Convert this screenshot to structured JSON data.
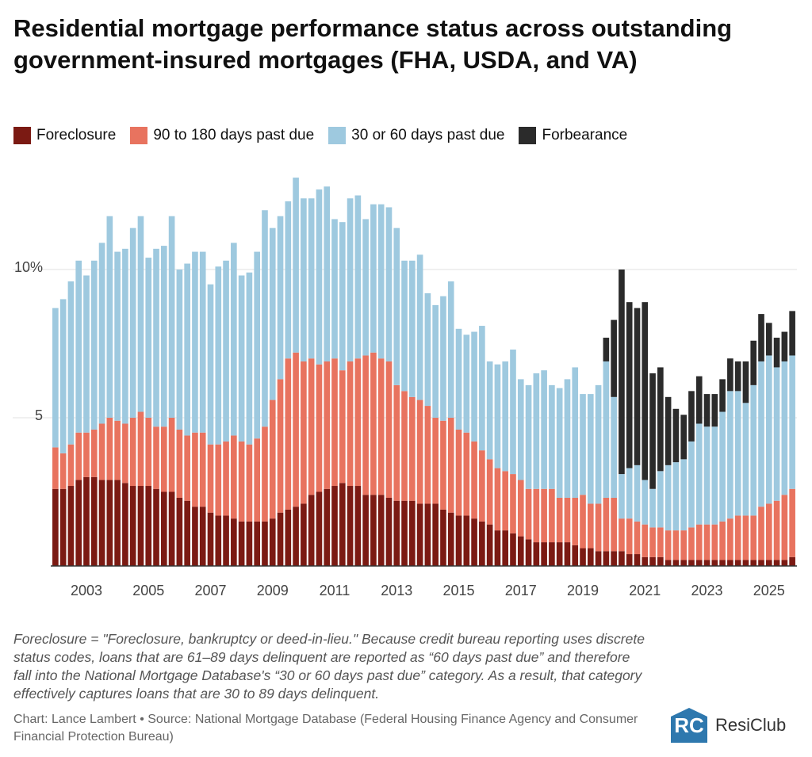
{
  "chart_data": {
    "type": "stacked_bar",
    "title": "Residential mortgage performance status across outstanding government-insured mortgages (FHA, USDA, and VA)",
    "note": "Foreclosure = \"Foreclosure, bankruptcy or deed-in-lieu.\" Because credit bureau reporting uses discrete status codes, loans that are 61–89 days delinquent are reported as “60 days past due” and therefore fall into the National Mortgage Database's “30 or 60 days past due” category. As a result, that category effectively captures loans that are 30 to 89 days delinquent.",
    "source": "Chart: Lance Lambert • Source: National Mortgage Database (Federal Housing Finance Agency and Consumer Financial Protection Bureau)",
    "brand": {
      "mark": "RC",
      "name": "ResiClub"
    },
    "x": [
      2002,
      2002.25,
      2002.5,
      2002.75,
      2003,
      2003.25,
      2003.5,
      2003.75,
      2004,
      2004.25,
      2004.5,
      2004.75,
      2005,
      2005.25,
      2005.5,
      2005.75,
      2006,
      2006.25,
      2006.5,
      2006.75,
      2007,
      2007.25,
      2007.5,
      2007.75,
      2008,
      2008.25,
      2008.5,
      2008.75,
      2009,
      2009.25,
      2009.5,
      2009.75,
      2010,
      2010.25,
      2010.5,
      2010.75,
      2011,
      2011.25,
      2011.5,
      2011.75,
      2012,
      2012.25,
      2012.5,
      2012.75,
      2013,
      2013.25,
      2013.5,
      2013.75,
      2014,
      2014.25,
      2014.5,
      2014.75,
      2015,
      2015.25,
      2015.5,
      2015.75,
      2016,
      2016.25,
      2016.5,
      2016.75,
      2017,
      2017.25,
      2017.5,
      2017.75,
      2018,
      2018.25,
      2018.5,
      2018.75,
      2019,
      2019.25,
      2019.5,
      2019.75,
      2020,
      2020.25,
      2020.5,
      2020.75,
      2021,
      2021.25,
      2021.5,
      2021.75,
      2022,
      2022.25,
      2022.5,
      2022.75,
      2023,
      2023.25,
      2023.5,
      2023.75,
      2024,
      2024.25,
      2024.5,
      2024.75,
      2025,
      2025.25,
      2025.5,
      2025.75
    ],
    "series": [
      {
        "name": "Foreclosure",
        "color": "#7b1a13",
        "values": [
          2.6,
          2.6,
          2.7,
          2.9,
          3.0,
          3.0,
          2.9,
          2.9,
          2.9,
          2.8,
          2.7,
          2.7,
          2.7,
          2.6,
          2.5,
          2.5,
          2.3,
          2.2,
          2.0,
          2.0,
          1.8,
          1.7,
          1.7,
          1.6,
          1.5,
          1.5,
          1.5,
          1.5,
          1.6,
          1.8,
          1.9,
          2.0,
          2.1,
          2.4,
          2.5,
          2.6,
          2.7,
          2.8,
          2.7,
          2.7,
          2.4,
          2.4,
          2.4,
          2.3,
          2.2,
          2.2,
          2.2,
          2.1,
          2.1,
          2.1,
          1.9,
          1.8,
          1.7,
          1.7,
          1.6,
          1.5,
          1.4,
          1.2,
          1.2,
          1.1,
          1.0,
          0.9,
          0.8,
          0.8,
          0.8,
          0.8,
          0.8,
          0.7,
          0.6,
          0.6,
          0.5,
          0.5,
          0.5,
          0.5,
          0.4,
          0.4,
          0.3,
          0.3,
          0.3,
          0.2,
          0.2,
          0.2,
          0.2,
          0.2,
          0.2,
          0.2,
          0.2,
          0.2,
          0.2,
          0.2,
          0.2,
          0.2,
          0.2,
          0.2,
          0.2,
          0.3
        ]
      },
      {
        "name": "90 to 180 days past due",
        "color": "#e8735f",
        "values": [
          1.4,
          1.2,
          1.4,
          1.6,
          1.5,
          1.6,
          1.9,
          2.1,
          2.0,
          2.0,
          2.3,
          2.5,
          2.3,
          2.1,
          2.2,
          2.5,
          2.3,
          2.2,
          2.5,
          2.5,
          2.3,
          2.4,
          2.5,
          2.8,
          2.7,
          2.6,
          2.8,
          3.2,
          4.0,
          4.5,
          5.1,
          5.2,
          4.8,
          4.6,
          4.3,
          4.3,
          4.3,
          3.8,
          4.2,
          4.3,
          4.7,
          4.8,
          4.6,
          4.6,
          3.9,
          3.7,
          3.5,
          3.5,
          3.3,
          2.9,
          3.0,
          3.2,
          2.9,
          2.8,
          2.6,
          2.4,
          2.2,
          2.1,
          2.0,
          2.0,
          1.9,
          1.7,
          1.8,
          1.8,
          1.8,
          1.5,
          1.5,
          1.6,
          1.8,
          1.5,
          1.6,
          1.8,
          1.8,
          1.1,
          1.2,
          1.1,
          1.1,
          1.0,
          1.0,
          1.0,
          1.0,
          1.0,
          1.1,
          1.2,
          1.2,
          1.2,
          1.3,
          1.4,
          1.5,
          1.5,
          1.5,
          1.8,
          1.9,
          2.0,
          2.2,
          2.3
        ]
      },
      {
        "name": "30 or 60 days past due",
        "color": "#9ec9df",
        "values": [
          4.7,
          5.2,
          5.5,
          5.8,
          5.3,
          5.7,
          6.1,
          6.8,
          5.7,
          5.9,
          6.4,
          6.6,
          5.4,
          6.0,
          6.1,
          6.8,
          5.4,
          5.8,
          6.1,
          6.1,
          5.4,
          6.0,
          6.1,
          6.5,
          5.6,
          5.8,
          6.3,
          7.3,
          5.8,
          5.5,
          5.3,
          5.9,
          5.5,
          5.4,
          5.9,
          5.9,
          4.7,
          5.0,
          5.5,
          5.5,
          4.6,
          5.0,
          5.2,
          5.2,
          5.3,
          4.4,
          4.6,
          4.9,
          3.8,
          3.8,
          4.2,
          4.6,
          3.4,
          3.3,
          3.7,
          4.2,
          3.3,
          3.5,
          3.7,
          4.2,
          3.4,
          3.5,
          3.9,
          4.0,
          3.5,
          3.7,
          4.0,
          4.4,
          3.4,
          3.7,
          4.0,
          4.6,
          3.4,
          1.5,
          1.7,
          1.9,
          1.5,
          1.3,
          1.9,
          2.2,
          2.3,
          2.4,
          2.9,
          3.4,
          3.3,
          3.3,
          3.7,
          4.3,
          4.2,
          3.8,
          4.4,
          4.9,
          5.0,
          4.5,
          4.5,
          4.5
        ]
      },
      {
        "name": "Forbearance",
        "color": "#2b2b2b",
        "values": [
          0,
          0,
          0,
          0,
          0,
          0,
          0,
          0,
          0,
          0,
          0,
          0,
          0,
          0,
          0,
          0,
          0,
          0,
          0,
          0,
          0,
          0,
          0,
          0,
          0,
          0,
          0,
          0,
          0,
          0,
          0,
          0,
          0,
          0,
          0,
          0,
          0,
          0,
          0,
          0,
          0,
          0,
          0,
          0,
          0,
          0,
          0,
          0,
          0,
          0,
          0,
          0,
          0,
          0,
          0,
          0,
          0,
          0,
          0,
          0,
          0,
          0,
          0,
          0,
          0,
          0,
          0,
          0,
          0,
          0,
          0,
          0.8,
          2.6,
          6.9,
          5.6,
          5.3,
          6.0,
          3.9,
          3.5,
          2.3,
          1.8,
          1.5,
          1.7,
          1.6,
          1.1,
          1.1,
          1.1,
          1.1,
          1.0,
          1.4,
          1.5,
          1.6,
          1.1,
          1.0,
          1.0,
          1.5
        ]
      }
    ],
    "xlim": [
      2001.85,
      2025.9
    ],
    "xticks": [
      2003,
      2005,
      2007,
      2009,
      2011,
      2013,
      2015,
      2017,
      2019,
      2021,
      2023,
      2025
    ],
    "ylim": [
      0,
      13.3
    ],
    "yticks": [
      5,
      {
        "value": 10,
        "label": "10%"
      }
    ],
    "grid": true
  }
}
